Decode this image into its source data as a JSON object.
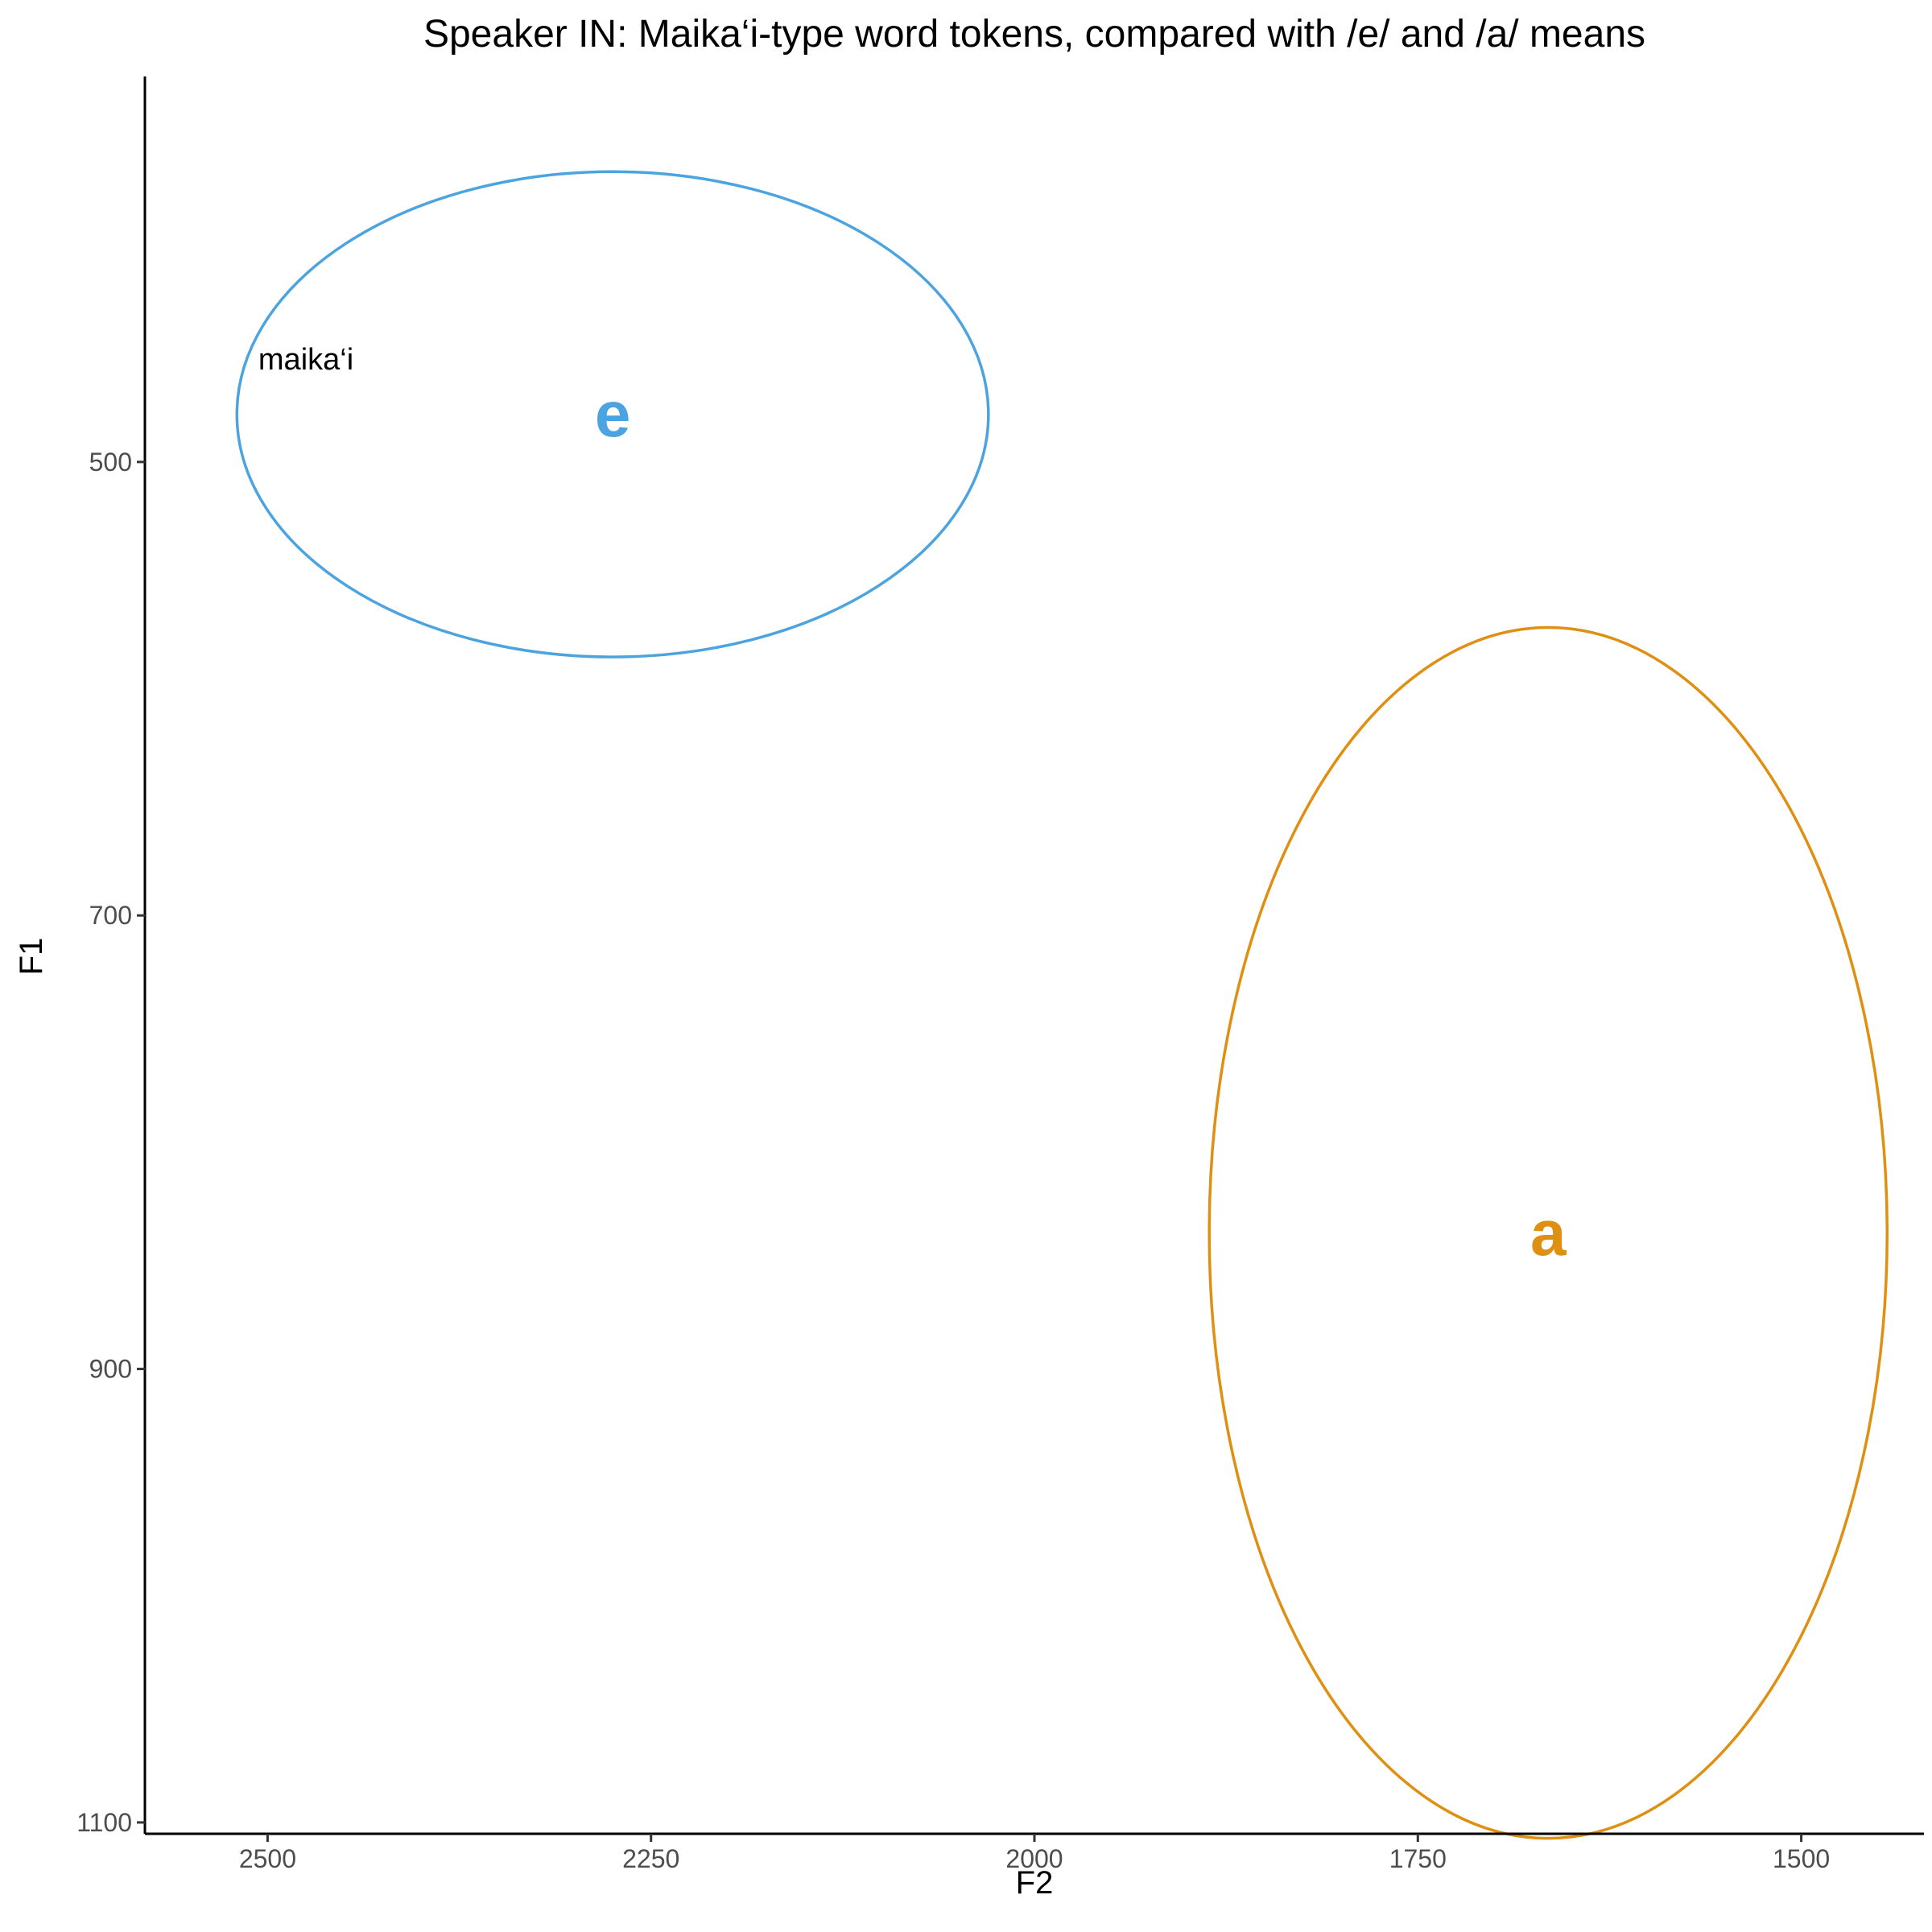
{
  "chart_data": {
    "type": "scatter",
    "title": "Speaker IN: Maika‘i-type word tokens, compared with /e/ and /a/ means",
    "xlabel": "F2",
    "ylabel": "F1",
    "x_reversed": true,
    "y_reversed": true,
    "xlim": [
      2580,
      1420
    ],
    "ylim": [
      330,
      1105
    ],
    "x_ticks": [
      2500,
      2250,
      2000,
      1750,
      1500
    ],
    "y_ticks": [
      500,
      700,
      900,
      1100
    ],
    "grid": false,
    "legend": "none",
    "vowels": [
      {
        "label": "e",
        "color": "#4BA3E0",
        "center_f2": 2275,
        "center_f1": 479,
        "semi_axis_f2": 245,
        "semi_axis_f1": 107
      },
      {
        "label": "a",
        "color": "#DF8F12",
        "center_f2": 1665,
        "center_f1": 840,
        "semi_axis_f2": 221,
        "semi_axis_f1": 267
      }
    ],
    "tokens": [
      {
        "label": "maika‘i",
        "f2": 2475,
        "f1": 455
      }
    ]
  }
}
